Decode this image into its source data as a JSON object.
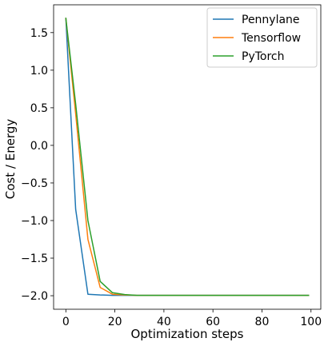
{
  "chart_data": {
    "type": "line",
    "title": "",
    "xlabel": "Optimization steps",
    "ylabel": "Cost / Energy",
    "xlim": [
      -5,
      104
    ],
    "ylim": [
      -2.18,
      1.87
    ],
    "x_ticks": [
      0,
      20,
      40,
      60,
      80,
      100
    ],
    "y_ticks": [
      -2.0,
      -1.5,
      -1.0,
      -0.5,
      0.0,
      0.5,
      1.0,
      1.5
    ],
    "x_tick_labels": [
      "0",
      "20",
      "40",
      "60",
      "80",
      "100"
    ],
    "y_tick_labels": [
      "−2.0",
      "−1.5",
      "−1.0",
      "−0.5",
      "0.0",
      "0.5",
      "1.0",
      "1.5"
    ],
    "grid": false,
    "legend_position": "top-right",
    "series": [
      {
        "name": "Pennylane",
        "color": "#1f77b4",
        "x": [
          0,
          4,
          9,
          14,
          19,
          24,
          29,
          34,
          39,
          44,
          49,
          54,
          59,
          64,
          69,
          74,
          79,
          84,
          89,
          94,
          99
        ],
        "y": [
          1.69,
          -0.85,
          -1.98,
          -1.99,
          -1.995,
          -1.995,
          -1.995,
          -1.995,
          -1.995,
          -1.995,
          -1.995,
          -1.995,
          -1.995,
          -1.995,
          -1.995,
          -1.995,
          -1.995,
          -1.995,
          -1.995,
          -1.995,
          -1.995
        ]
      },
      {
        "name": "Tensorflow",
        "color": "#ff7f0e",
        "x": [
          0,
          4,
          9,
          14,
          19,
          24,
          29,
          34,
          39,
          44,
          49,
          54,
          59,
          64,
          69,
          74,
          79,
          84,
          89,
          94,
          99
        ],
        "y": [
          1.69,
          0.42,
          -1.25,
          -1.89,
          -1.98,
          -1.99,
          -1.995,
          -1.995,
          -1.995,
          -1.995,
          -1.995,
          -1.995,
          -1.995,
          -1.995,
          -1.995,
          -1.995,
          -1.995,
          -1.995,
          -1.995,
          -1.995,
          -1.995
        ]
      },
      {
        "name": "PyTorch",
        "color": "#2ca02c",
        "x": [
          0,
          4,
          9,
          14,
          19,
          24,
          29,
          34,
          39,
          44,
          49,
          54,
          59,
          64,
          69,
          74,
          79,
          84,
          89,
          94,
          99
        ],
        "y": [
          1.69,
          0.55,
          -1.0,
          -1.81,
          -1.96,
          -1.985,
          -1.995,
          -1.995,
          -1.995,
          -1.995,
          -1.995,
          -1.995,
          -1.995,
          -1.995,
          -1.995,
          -1.995,
          -1.995,
          -1.995,
          -1.995,
          -1.995,
          -1.995
        ]
      }
    ]
  }
}
